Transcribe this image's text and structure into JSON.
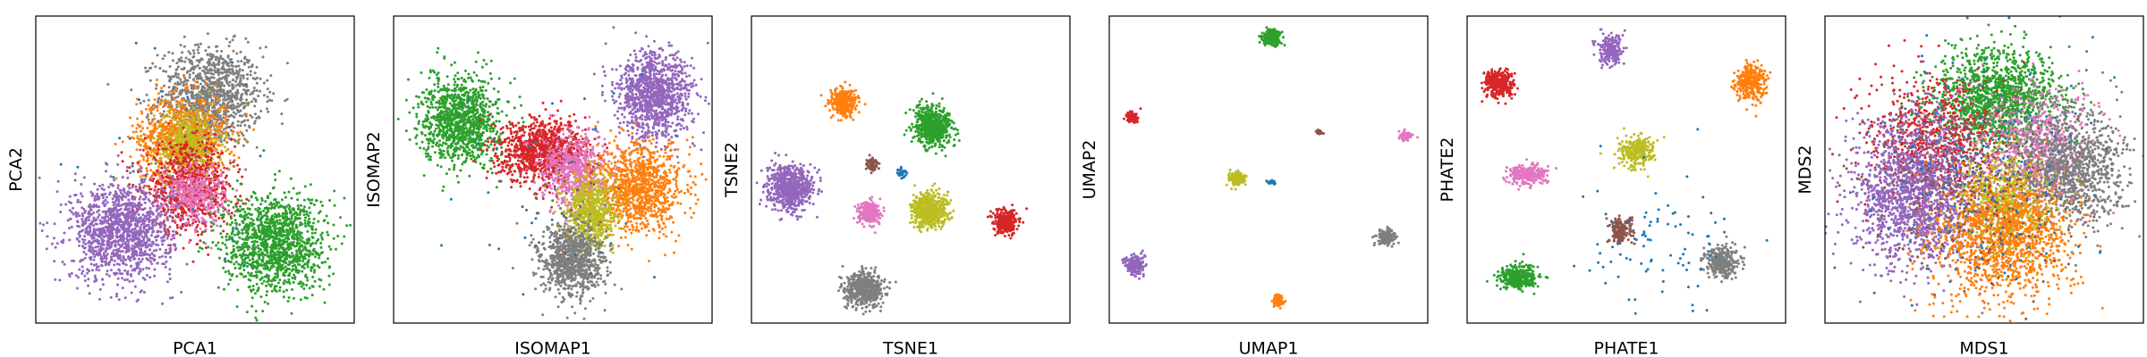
{
  "figure": {
    "layout": "six scatter panels in one row, no ticks, no legend, no title"
  },
  "palette": {
    "blue": "#1f77b4",
    "orange": "#ff7f0e",
    "green": "#2ca02c",
    "red": "#d62728",
    "purple": "#9467bd",
    "brown": "#8c564b",
    "pink": "#e377c2",
    "gray": "#7f7f7f",
    "olive": "#bcbd22"
  },
  "chart_data": [
    {
      "type": "scatter",
      "xlabel": "PCA1",
      "ylabel": "PCA2",
      "grid": false,
      "legend": "none",
      "xlim": [
        0,
        100
      ],
      "ylim": [
        0,
        100
      ],
      "clusters": [
        {
          "color": "gray",
          "cx": 55,
          "cy": 74,
          "sx": 8,
          "sy": 8,
          "n": 1100
        },
        {
          "color": "orange",
          "cx": 46,
          "cy": 60,
          "sx": 7,
          "sy": 7,
          "n": 900
        },
        {
          "color": "olive",
          "cx": 48,
          "cy": 58,
          "sx": 5,
          "sy": 6,
          "n": 500
        },
        {
          "color": "red",
          "cx": 48,
          "cy": 44,
          "sx": 7,
          "sy": 7,
          "n": 800
        },
        {
          "color": "pink",
          "cx": 50,
          "cy": 42,
          "sx": 5,
          "sy": 5,
          "n": 350
        },
        {
          "color": "purple",
          "cx": 27,
          "cy": 30,
          "sx": 8,
          "sy": 8,
          "n": 1300
        },
        {
          "color": "green",
          "cx": 75,
          "cy": 26,
          "sx": 8,
          "sy": 8,
          "n": 1300
        },
        {
          "color": "blue",
          "cx": 50,
          "cy": 50,
          "sx": 25,
          "sy": 25,
          "n": 25
        }
      ]
    },
    {
      "type": "scatter",
      "xlabel": "ISOMAP1",
      "ylabel": "ISOMAP2",
      "grid": false,
      "legend": "none",
      "xlim": [
        0,
        100
      ],
      "ylim": [
        0,
        100
      ],
      "clusters": [
        {
          "color": "green",
          "cx": 21,
          "cy": 66,
          "sx": 6,
          "sy": 7,
          "n": 1100
        },
        {
          "color": "purple",
          "cx": 82,
          "cy": 74,
          "sx": 6,
          "sy": 7,
          "n": 1100
        },
        {
          "color": "red",
          "cx": 47,
          "cy": 56,
          "sx": 7,
          "sy": 5,
          "n": 1000
        },
        {
          "color": "pink",
          "cx": 57,
          "cy": 50,
          "sx": 5,
          "sy": 6,
          "n": 600
        },
        {
          "color": "orange",
          "cx": 77,
          "cy": 44,
          "sx": 7,
          "sy": 7,
          "n": 1000
        },
        {
          "color": "olive",
          "cx": 62,
          "cy": 36,
          "sx": 4,
          "sy": 6,
          "n": 700
        },
        {
          "color": "gray",
          "cx": 56,
          "cy": 20,
          "sx": 5,
          "sy": 6,
          "n": 900
        },
        {
          "color": "blue",
          "cx": 48,
          "cy": 45,
          "sx": 18,
          "sy": 22,
          "n": 30
        },
        {
          "color": "brown",
          "cx": 55,
          "cy": 40,
          "sx": 10,
          "sy": 12,
          "n": 40
        }
      ]
    },
    {
      "type": "scatter",
      "xlabel": "TSNE1",
      "ylabel": "TSNE2",
      "grid": false,
      "legend": "none",
      "xlim": [
        0,
        100
      ],
      "ylim": [
        0,
        100
      ],
      "clusters": [
        {
          "color": "orange",
          "cx": 29,
          "cy": 72,
          "sx": 2.0,
          "sy": 2.2,
          "n": 350
        },
        {
          "color": "green",
          "cx": 57,
          "cy": 64,
          "sx": 3.0,
          "sy": 3.2,
          "n": 600
        },
        {
          "color": "brown",
          "cx": 38,
          "cy": 52,
          "sx": 1.0,
          "sy": 1.1,
          "n": 70
        },
        {
          "color": "blue",
          "cx": 47,
          "cy": 49,
          "sx": 0.8,
          "sy": 0.8,
          "n": 40
        },
        {
          "color": "purple",
          "cx": 12,
          "cy": 44,
          "sx": 3.5,
          "sy": 3.5,
          "n": 700
        },
        {
          "color": "pink",
          "cx": 37,
          "cy": 36,
          "sx": 1.8,
          "sy": 1.8,
          "n": 250
        },
        {
          "color": "olive",
          "cx": 56,
          "cy": 37,
          "sx": 2.8,
          "sy": 2.8,
          "n": 550
        },
        {
          "color": "red",
          "cx": 80,
          "cy": 33,
          "sx": 1.9,
          "sy": 1.8,
          "n": 320
        },
        {
          "color": "gray",
          "cx": 35,
          "cy": 11,
          "sx": 3.0,
          "sy": 2.8,
          "n": 550
        }
      ]
    },
    {
      "type": "scatter",
      "xlabel": "UMAP1",
      "ylabel": "UMAP2",
      "grid": false,
      "legend": "none",
      "xlim": [
        0,
        100
      ],
      "ylim": [
        0,
        100
      ],
      "clusters": [
        {
          "color": "green",
          "cx": 51,
          "cy": 93,
          "sx": 1.4,
          "sy": 1.3,
          "n": 200
        },
        {
          "color": "red",
          "cx": 7,
          "cy": 67,
          "sx": 0.9,
          "sy": 0.9,
          "n": 90
        },
        {
          "color": "brown",
          "cx": 66,
          "cy": 62,
          "sx": 0.6,
          "sy": 0.6,
          "n": 20
        },
        {
          "color": "pink",
          "cx": 93,
          "cy": 61,
          "sx": 0.9,
          "sy": 0.8,
          "n": 80
        },
        {
          "color": "olive",
          "cx": 40,
          "cy": 47,
          "sx": 1.3,
          "sy": 1.1,
          "n": 160
        },
        {
          "color": "blue",
          "cx": 51,
          "cy": 46,
          "sx": 0.7,
          "sy": 0.3,
          "n": 25
        },
        {
          "color": "gray",
          "cx": 87,
          "cy": 28,
          "sx": 1.4,
          "sy": 1.2,
          "n": 180
        },
        {
          "color": "purple",
          "cx": 8,
          "cy": 19,
          "sx": 1.4,
          "sy": 1.6,
          "n": 200
        },
        {
          "color": "orange",
          "cx": 53,
          "cy": 7,
          "sx": 0.8,
          "sy": 1.0,
          "n": 90
        }
      ]
    },
    {
      "type": "scatter",
      "xlabel": "PHATE1",
      "ylabel": "PHATE2",
      "grid": false,
      "legend": "none",
      "xlim": [
        0,
        100
      ],
      "ylim": [
        0,
        100
      ],
      "clusters": [
        {
          "color": "purple",
          "cx": 45,
          "cy": 89,
          "sx": 1.8,
          "sy": 2.5,
          "n": 220
        },
        {
          "color": "red",
          "cx": 10,
          "cy": 78,
          "sx": 2.5,
          "sy": 2.3,
          "n": 300
        },
        {
          "color": "orange",
          "cx": 89,
          "cy": 78,
          "sx": 2.3,
          "sy": 3.0,
          "n": 300
        },
        {
          "color": "olive",
          "cx": 53,
          "cy": 56,
          "sx": 2.7,
          "sy": 2.5,
          "n": 280
        },
        {
          "color": "pink",
          "cx": 19,
          "cy": 48,
          "sx": 3.0,
          "sy": 1.7,
          "n": 260
        },
        {
          "color": "brown",
          "cx": 48,
          "cy": 30,
          "sx": 1.8,
          "sy": 2.2,
          "n": 180
        },
        {
          "color": "gray",
          "cx": 80,
          "cy": 20,
          "sx": 2.7,
          "sy": 2.5,
          "n": 300
        },
        {
          "color": "green",
          "cx": 16,
          "cy": 15,
          "sx": 3.0,
          "sy": 2.0,
          "n": 350
        },
        {
          "color": "blue",
          "cx": 60,
          "cy": 25,
          "sx": 12,
          "sy": 12,
          "n": 90
        }
      ]
    },
    {
      "type": "scatter",
      "xlabel": "MDS1",
      "ylabel": "MDS2",
      "grid": false,
      "legend": "none",
      "xlim": [
        0,
        100
      ],
      "ylim": [
        0,
        100
      ],
      "clusters": [
        {
          "color": "green",
          "cx": 54,
          "cy": 73,
          "sx": 10,
          "sy": 8,
          "n": 1400
        },
        {
          "color": "red",
          "cx": 34,
          "cy": 60,
          "sx": 10,
          "sy": 10,
          "n": 700
        },
        {
          "color": "pink",
          "cx": 66,
          "cy": 58,
          "sx": 9,
          "sy": 9,
          "n": 700
        },
        {
          "color": "gray",
          "cx": 77,
          "cy": 50,
          "sx": 9,
          "sy": 9,
          "n": 1100
        },
        {
          "color": "purple",
          "cx": 29,
          "cy": 42,
          "sx": 10,
          "sy": 12,
          "n": 1700
        },
        {
          "color": "olive",
          "cx": 57,
          "cy": 38,
          "sx": 7,
          "sy": 9,
          "n": 700
        },
        {
          "color": "orange",
          "cx": 56,
          "cy": 28,
          "sx": 11,
          "sy": 10,
          "n": 1300
        },
        {
          "color": "brown",
          "cx": 45,
          "cy": 45,
          "sx": 15,
          "sy": 15,
          "n": 300
        },
        {
          "color": "blue",
          "cx": 50,
          "cy": 50,
          "sx": 18,
          "sy": 18,
          "n": 200
        }
      ]
    }
  ]
}
